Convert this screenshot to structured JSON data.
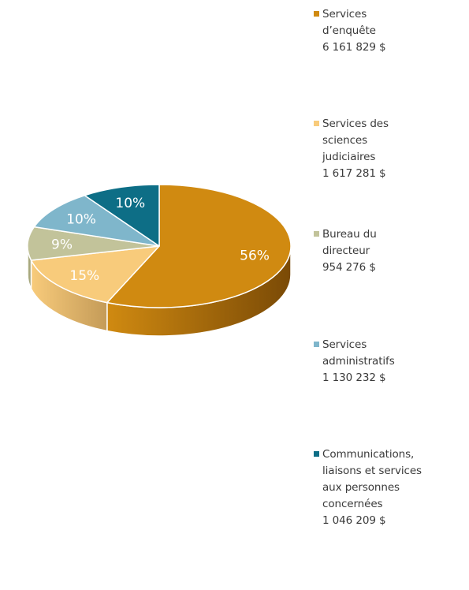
{
  "chart_data": {
    "type": "pie",
    "style": "3d",
    "title": "",
    "series": [
      {
        "name": "",
        "slices": [
          {
            "label": "Services d’enquête",
            "legend_lines": [
              "Services",
              "d’enquête",
              "6 161 829 $"
            ],
            "amount_text": "6 161 829 $",
            "value": 6161829,
            "percent_label": "56%",
            "color": "#D08A11",
            "side_color": "#7A4A06",
            "label_color": "#FFFFFF"
          },
          {
            "label": "Services des sciences judiciaires",
            "legend_lines": [
              "Services des",
              "sciences",
              "judiciaires",
              "1 617 281 $"
            ],
            "amount_text": "1 617 281 $",
            "value": 1617281,
            "percent_label": "15%",
            "color": "#F8CB7B",
            "side_color": "#C49B58",
            "label_color": "#FFFFFF"
          },
          {
            "label": "Bureau du directeur",
            "legend_lines": [
              "Bureau du",
              "directeur",
              "954 276 $"
            ],
            "amount_text": "954 276 $",
            "value": 954276,
            "percent_label": "9%",
            "color": "#C2C39A",
            "side_color": "#8F9068",
            "label_color": "#FFFFFF"
          },
          {
            "label": "Services administratifs",
            "legend_lines": [
              "Services",
              "administratifs",
              "1 130 232 $"
            ],
            "amount_text": "1 130 232 $",
            "value": 1130232,
            "percent_label": "10%",
            "color": "#7FB6CB",
            "side_color": "#4E8497",
            "label_color": "#FFFFFF"
          },
          {
            "label": "Communications, liaisons et services aux personnes concernées",
            "legend_lines": [
              "Communications,",
              "liaisons et services",
              "aux personnes",
              "concernées",
              "1 046 209 $"
            ],
            "amount_text": "1 046 209 $",
            "value": 1046209,
            "percent_label": "10%",
            "color": "#0D6E86",
            "side_color": "#074456",
            "label_color": "#FFFFFF"
          }
        ]
      }
    ],
    "legend_position": "right",
    "start_angle": "12 o'clock",
    "direction": "clockwise"
  }
}
